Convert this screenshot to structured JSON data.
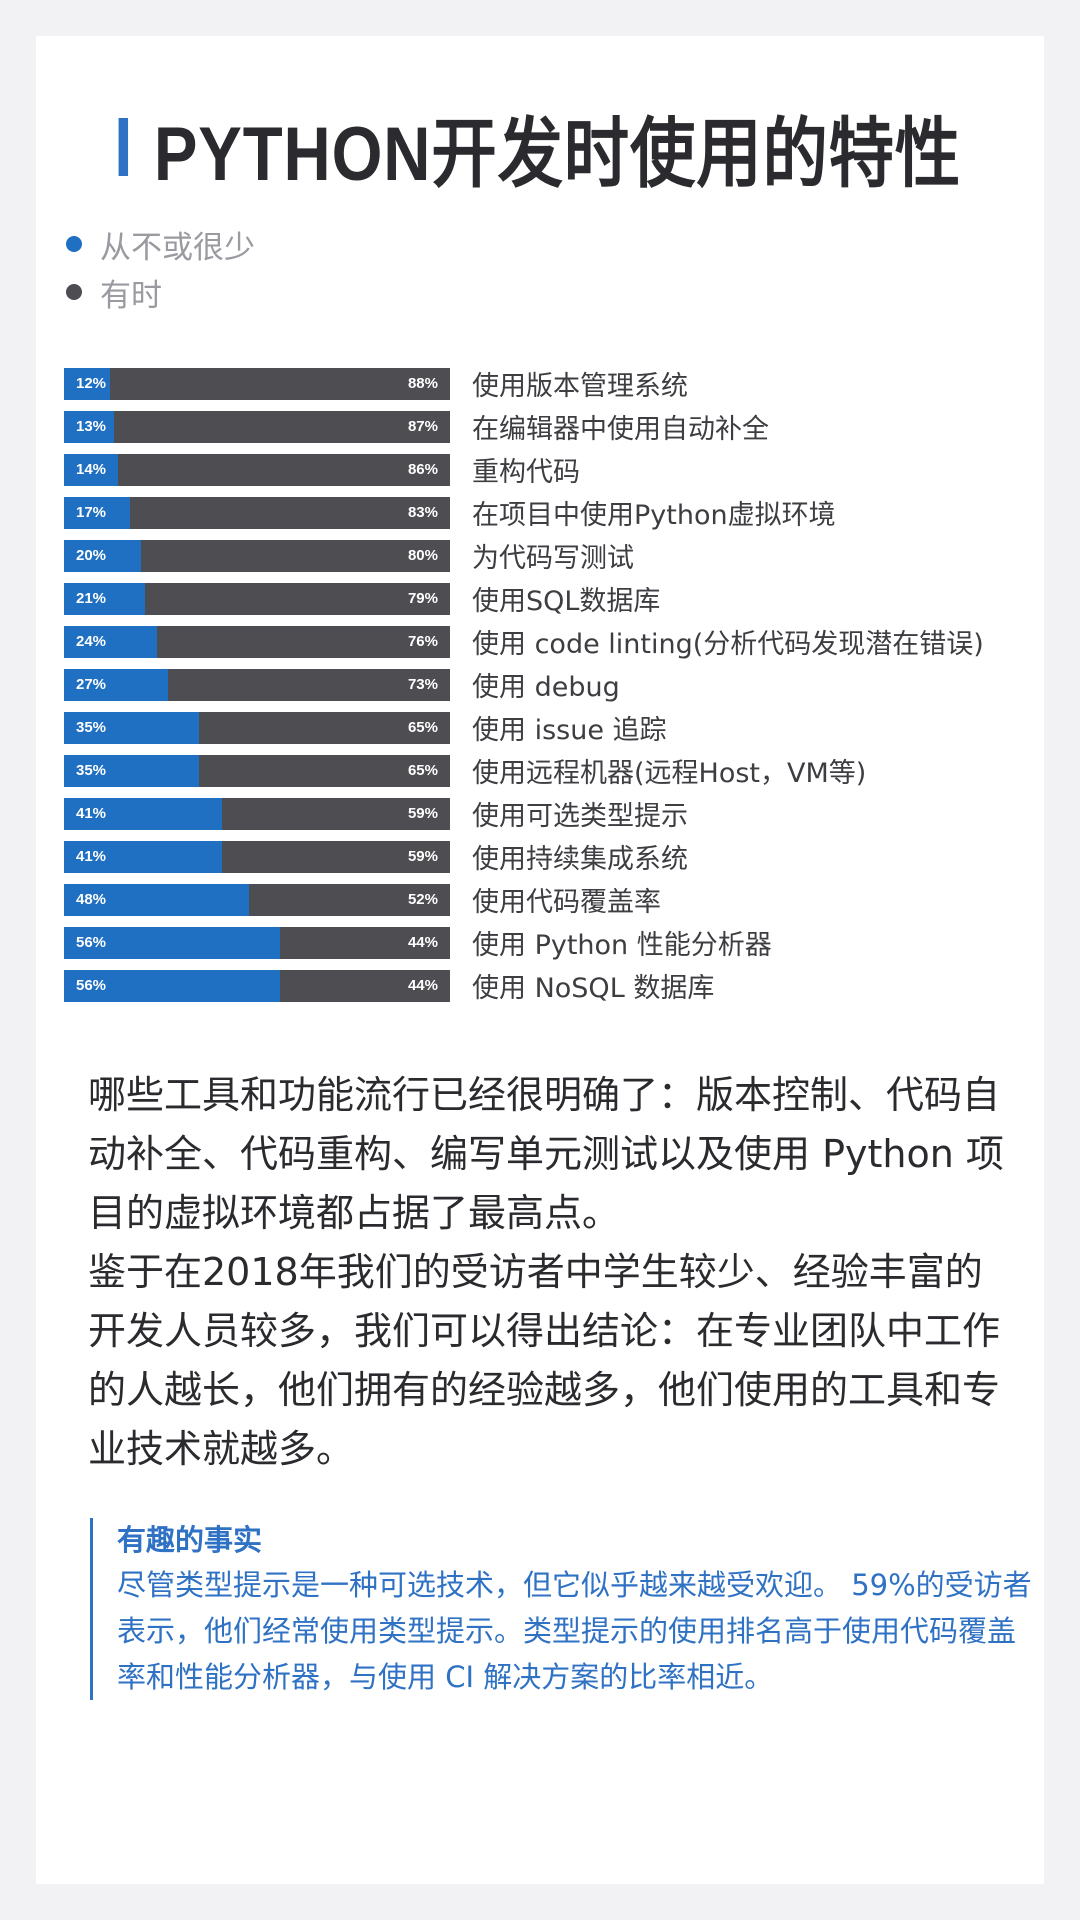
{
  "title": "PYTHON开发时使用的特性",
  "colors": {
    "accent": "#2f72c4",
    "series_a": "#1f6fc2",
    "series_b": "#4d4d52"
  },
  "legend": [
    {
      "label": "从不或很少",
      "color": "#1f6fc2"
    },
    {
      "label": "有时",
      "color": "#4d4d52"
    }
  ],
  "chart_data": {
    "type": "bar",
    "orientation": "horizontal",
    "stacked": true,
    "categories": [
      "使用版本管理系统",
      "在编辑器中使用自动补全",
      "重构代码",
      "在项目中使用Python虚拟环境",
      "为代码写测试",
      "使用SQL数据库",
      "使用 code linting(分析代码发现潜在错误)",
      "使用 debug",
      "使用 issue 追踪",
      "使用远程机器(远程Host，VM等)",
      "使用可选类型提示",
      "使用持续集成系统",
      "使用代码覆盖率",
      "使用 Python 性能分析器",
      "使用 NoSQL 数据库"
    ],
    "series": [
      {
        "name": "从不或很少",
        "values": [
          12,
          13,
          14,
          17,
          20,
          21,
          24,
          27,
          35,
          35,
          41,
          41,
          48,
          56,
          56
        ]
      },
      {
        "name": "有时",
        "values": [
          88,
          87,
          86,
          83,
          80,
          79,
          76,
          73,
          65,
          65,
          59,
          59,
          52,
          44,
          44
        ]
      }
    ],
    "value_suffix": "%",
    "xlim": [
      0,
      100
    ],
    "legend_position": "top-left"
  },
  "body_paragraphs": [
    "哪些工具和功能流行已经很明确了：版本控制、代码自动补全、代码重构、编写单元测试以及使用 Python 项目的虚拟环境都占据了最高点。",
    "鉴于在2018年我们的受访者中学生较少、经验丰富的开发人员较多，我们可以得出结论：在专业团队中工作的人越长，他们拥有的经验越多，他们使用的工具和专业技术就越多。"
  ],
  "fact": {
    "title": "有趣的事实",
    "body": "尽管类型提示是一种可选技术，但它似乎越来越受欢迎。 59%的受访者表示，他们经常使用类型提示。类型提示的使用排名高于使用代码覆盖率和性能分析器，与使用 CI 解决方案的比率相近。"
  }
}
